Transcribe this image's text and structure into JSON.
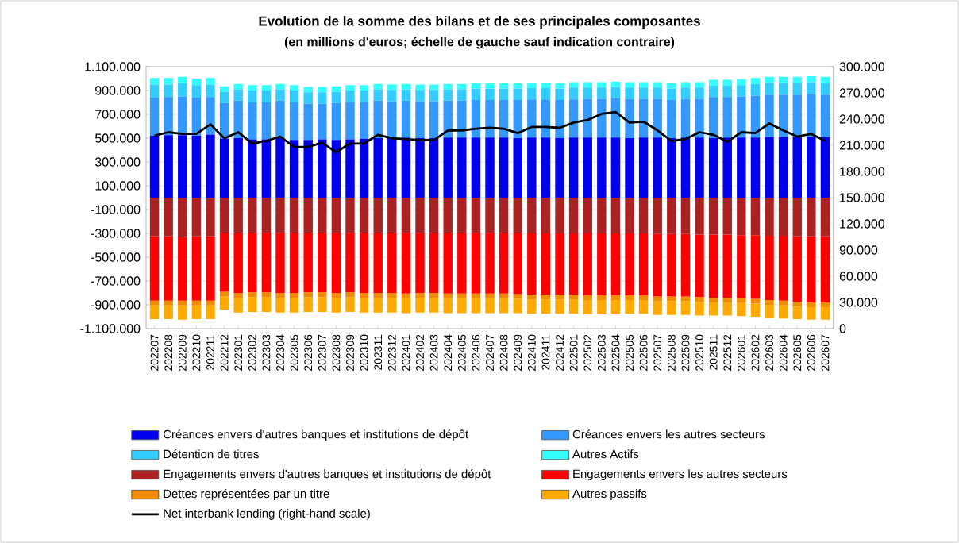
{
  "chart_data": {
    "type": "bar",
    "stacked": true,
    "title": "Evolution de la somme des bilans et de ses principales composantes",
    "subtitle": "(en millions d'euros; échelle de gauche sauf indication contraire)",
    "categories": [
      "202207",
      "202208",
      "202209",
      "202210",
      "202211",
      "202212",
      "202301",
      "202302",
      "202303",
      "202304",
      "202305",
      "202306",
      "202307",
      "202308",
      "202309",
      "202310",
      "202311",
      "202312",
      "202401",
      "202402",
      "202403",
      "202404",
      "202405",
      "202406",
      "202407",
      "202408",
      "202409",
      "202410",
      "202411",
      "202412",
      "202501",
      "202502",
      "202503",
      "202504",
      "202505",
      "202506",
      "202507",
      "202508",
      "202509",
      "202510",
      "202511",
      "202512",
      "202601",
      "202602",
      "202603",
      "202604",
      "202605",
      "202606",
      "202607"
    ],
    "series": [
      {
        "name": "Créances envers d'autres banques et institutions de dépôt",
        "color": "#0000ee",
        "values": [
          520000,
          525000,
          525000,
          520000,
          530000,
          495000,
          500000,
          490000,
          490000,
          500000,
          485000,
          485000,
          490000,
          485000,
          490000,
          495000,
          500000,
          500000,
          505000,
          500000,
          500000,
          505000,
          505000,
          505000,
          505000,
          505000,
          500000,
          505000,
          505000,
          500000,
          505000,
          505000,
          505000,
          505000,
          500000,
          505000,
          505000,
          500000,
          505000,
          505000,
          500000,
          505000,
          505000,
          505000,
          510000,
          510000,
          510000,
          510000,
          510000
        ]
      },
      {
        "name": "Créances envers les autres secteurs",
        "color": "#3399ff",
        "values": [
          320000,
          320000,
          325000,
          320000,
          315000,
          300000,
          315000,
          310000,
          310000,
          315000,
          315000,
          305000,
          300000,
          310000,
          315000,
          310000,
          315000,
          310000,
          310000,
          310000,
          310000,
          310000,
          310000,
          315000,
          315000,
          315000,
          320000,
          320000,
          320000,
          320000,
          320000,
          325000,
          325000,
          330000,
          330000,
          325000,
          325000,
          320000,
          325000,
          325000,
          345000,
          340000,
          345000,
          350000,
          355000,
          355000,
          355000,
          360000,
          355000
        ]
      },
      {
        "name": "Détention de titres",
        "color": "#33ccff",
        "values": [
          110000,
          105000,
          110000,
          105000,
          105000,
          95000,
          95000,
          100000,
          100000,
          95000,
          100000,
          95000,
          95000,
          95000,
          95000,
          95000,
          95000,
          95000,
          95000,
          95000,
          95000,
          95000,
          95000,
          95000,
          95000,
          95000,
          95000,
          95000,
          95000,
          95000,
          100000,
          95000,
          95000,
          95000,
          95000,
          95000,
          95000,
          95000,
          95000,
          95000,
          95000,
          95000,
          95000,
          100000,
          100000,
          100000,
          100000,
          100000,
          100000
        ]
      },
      {
        "name": "Autres Actifs",
        "color": "#33ffff",
        "values": [
          55000,
          55000,
          55000,
          55000,
          55000,
          45000,
          45000,
          45000,
          45000,
          45000,
          45000,
          45000,
          45000,
          45000,
          45000,
          45000,
          45000,
          45000,
          45000,
          45000,
          45000,
          45000,
          45000,
          45000,
          45000,
          45000,
          45000,
          45000,
          45000,
          45000,
          45000,
          45000,
          45000,
          45000,
          45000,
          45000,
          45000,
          45000,
          45000,
          45000,
          50000,
          50000,
          50000,
          50000,
          50000,
          50000,
          50000,
          50000,
          50000
        ]
      },
      {
        "name": "Engagements envers d'autres banques et institutions de dépôt",
        "color": "#aa2222",
        "values": [
          -325000,
          -325000,
          -330000,
          -325000,
          -325000,
          -295000,
          -295000,
          -295000,
          -295000,
          -295000,
          -295000,
          -295000,
          -295000,
          -295000,
          -295000,
          -295000,
          -295000,
          -295000,
          -295000,
          -295000,
          -295000,
          -295000,
          -295000,
          -295000,
          -295000,
          -295000,
          -295000,
          -300000,
          -300000,
          -300000,
          -300000,
          -300000,
          -300000,
          -300000,
          -300000,
          -300000,
          -305000,
          -305000,
          -305000,
          -310000,
          -310000,
          -310000,
          -315000,
          -315000,
          -320000,
          -320000,
          -325000,
          -325000,
          -325000
        ]
      },
      {
        "name": "Engagements envers les autres secteurs",
        "color": "#ff0000",
        "values": [
          -540000,
          -540000,
          -535000,
          -540000,
          -540000,
          -495000,
          -505000,
          -500000,
          -500000,
          -505000,
          -505000,
          -500000,
          -500000,
          -505000,
          -500000,
          -505000,
          -505000,
          -505000,
          -510000,
          -505000,
          -505000,
          -510000,
          -510000,
          -510000,
          -510000,
          -510000,
          -515000,
          -515000,
          -515000,
          -515000,
          -515000,
          -520000,
          -520000,
          -520000,
          -520000,
          -520000,
          -525000,
          -525000,
          -525000,
          -525000,
          -530000,
          -530000,
          -530000,
          -535000,
          -540000,
          -545000,
          -550000,
          -555000,
          -555000
        ]
      },
      {
        "name": "Dettes représentées par un titre",
        "color": "#f08c00",
        "values": [
          -40000,
          -40000,
          -40000,
          -40000,
          -40000,
          -40000,
          -40000,
          -40000,
          -40000,
          -40000,
          -40000,
          -40000,
          -40000,
          -40000,
          -40000,
          -40000,
          -40000,
          -40000,
          -40000,
          -40000,
          -40000,
          -40000,
          -40000,
          -40000,
          -40000,
          -40000,
          -40000,
          -40000,
          -40000,
          -40000,
          -40000,
          -40000,
          -40000,
          -40000,
          -40000,
          -40000,
          -40000,
          -40000,
          -40000,
          -40000,
          -40000,
          -40000,
          -40000,
          -40000,
          -40000,
          -40000,
          -40000,
          -40000,
          -40000
        ]
      },
      {
        "name": "Autres passifs",
        "color": "#ffaa00",
        "values": [
          -115000,
          -115000,
          -120000,
          -115000,
          -115000,
          -110000,
          -125000,
          -125000,
          -125000,
          -125000,
          -125000,
          -125000,
          -125000,
          -125000,
          -125000,
          -125000,
          -125000,
          -125000,
          -125000,
          -125000,
          -125000,
          -125000,
          -125000,
          -125000,
          -125000,
          -125000,
          -120000,
          -120000,
          -120000,
          -120000,
          -120000,
          -120000,
          -120000,
          -120000,
          -115000,
          -115000,
          -115000,
          -115000,
          -115000,
          -115000,
          -110000,
          -110000,
          -110000,
          -110000,
          -110000,
          -110000,
          -105000,
          -105000,
          -105000
        ]
      },
      {
        "name": "Net interbank lending (right-hand scale)",
        "type": "line",
        "axis": "y2",
        "color": "#000000",
        "values": [
          221000,
          225000,
          223000,
          223000,
          234000,
          218000,
          225000,
          212000,
          215000,
          220000,
          208000,
          208000,
          213000,
          202000,
          212000,
          212000,
          222000,
          218000,
          217000,
          216000,
          216000,
          227000,
          227000,
          229000,
          230000,
          229000,
          224000,
          231000,
          231000,
          230000,
          236000,
          239000,
          246000,
          248000,
          236000,
          237000,
          227000,
          215000,
          217000,
          225000,
          222000,
          214000,
          225000,
          224000,
          235000,
          227000,
          220000,
          223000,
          215000
        ]
      }
    ],
    "ylim": [
      -1100000,
      1100000
    ],
    "yticks": [
      {
        "value": -1100000,
        "label": "-1.100.000"
      },
      {
        "value": -900000,
        "label": "-900.000"
      },
      {
        "value": -700000,
        "label": "-700.000"
      },
      {
        "value": -500000,
        "label": "-500.000"
      },
      {
        "value": -300000,
        "label": "-300.000"
      },
      {
        "value": -100000,
        "label": "-100.000"
      },
      {
        "value": 100000,
        "label": "100.000"
      },
      {
        "value": 300000,
        "label": "300.000"
      },
      {
        "value": 500000,
        "label": "500.000"
      },
      {
        "value": 700000,
        "label": "700.000"
      },
      {
        "value": 900000,
        "label": "900.000"
      },
      {
        "value": 1100000,
        "label": "1.100.000"
      }
    ],
    "y2lim": [
      0,
      300000
    ],
    "y2ticks": [
      0,
      {
        "value": 30000,
        "label": "30.000"
      },
      {
        "value": 60000,
        "label": "60.000"
      },
      {
        "value": 90000,
        "label": "90.000"
      },
      {
        "value": 120000,
        "label": "120.000"
      },
      {
        "value": 150000,
        "label": "150.000"
      },
      {
        "value": 180000,
        "label": "180.000"
      },
      {
        "value": 210000,
        "label": "210.000"
      },
      {
        "value": 240000,
        "label": "240.000"
      },
      {
        "value": 270000,
        "label": "270.000"
      },
      {
        "value": 300000,
        "label": "300.000"
      }
    ],
    "grid": "y",
    "legend": "bottom",
    "marker": "none",
    "line_style": "solid"
  }
}
